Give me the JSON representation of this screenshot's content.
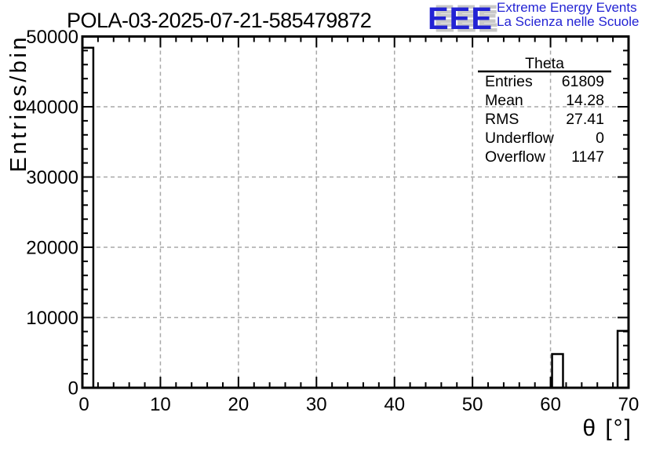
{
  "title": "POLA-03-2025-07-21-585479872",
  "logo": {
    "acronym": "EEE",
    "line1": "Extreme Energy Events",
    "line2": "La Scienza nelle Scuole",
    "blue": "#2323d4",
    "shadow": "#c8c8c8"
  },
  "chart_data": {
    "type": "bar",
    "title": "POLA-03-2025-07-21-585479872",
    "xlabel": "θ [°]",
    "ylabel": "Entries/bin",
    "xlim": [
      0,
      70
    ],
    "ylim": [
      0,
      50000
    ],
    "x_major_step": 10,
    "x_minor_step": 2,
    "y_major_step": 10000,
    "y_minor_step": 2000,
    "grid": true,
    "legend_position": "none",
    "bars": [
      {
        "x_start": 0,
        "x_end": 1.4,
        "value": 48400
      },
      {
        "x_start": 60.2,
        "x_end": 61.6,
        "value": 4800
      },
      {
        "x_start": 68.6,
        "x_end": 70,
        "value": 8100
      }
    ],
    "x_tick_labels": [
      "0",
      "10",
      "20",
      "30",
      "40",
      "50",
      "60",
      "70"
    ],
    "y_tick_labels": [
      "0",
      "10000",
      "20000",
      "30000",
      "40000",
      "50000"
    ],
    "stats": {
      "title": "Theta",
      "rows": [
        {
          "label": "Entries",
          "value": "61809"
        },
        {
          "label": "Mean",
          "value": "14.28"
        },
        {
          "label": "RMS",
          "value": "27.41"
        },
        {
          "label": "Underflow",
          "value": "0"
        },
        {
          "label": "Overflow",
          "value": "1147"
        }
      ]
    }
  },
  "colors": {
    "axis": "#000000",
    "grid": "#a8a8a8",
    "bar_fill": "#ffffff",
    "text": "#000000"
  }
}
